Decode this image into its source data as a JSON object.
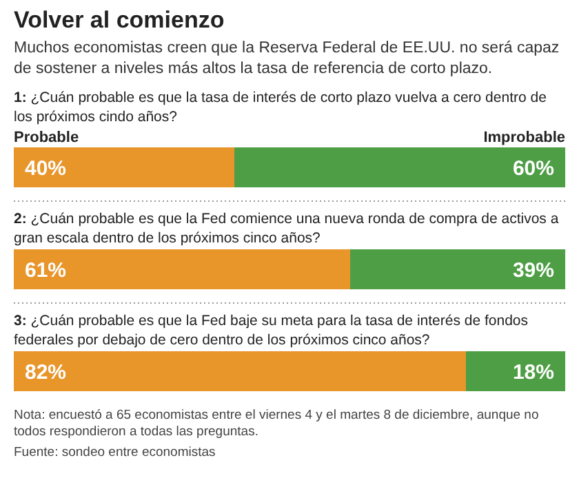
{
  "chart_data": {
    "type": "bar",
    "orientation": "horizontal",
    "stacked": true,
    "title": "Volver al comienzo",
    "subtitle": "Muchos economistas creen que la Reserva Federal de EE.UU. no será capaz de sostener a niveles más altos la tasa de referencia de corto plazo.",
    "categories": [
      "1: ¿Cuán probable es que la tasa de interés de corto plazo vuelva a cero dentro de los próximos cindo años?",
      "2: ¿Cuán probable es que la Fed comience una nueva ronda de compra de activos a gran escala dentro de los próximos cinco años?",
      "3: ¿Cuán probable es que la Fed baje su meta para la tasa de interés de fondos federales por debajo de cero dentro de los próximos cinco años?"
    ],
    "series": [
      {
        "name": "Probable",
        "color": "#e8952a",
        "values": [
          40,
          61,
          82
        ],
        "value_labels": [
          "40%",
          "61%",
          "82%"
        ]
      },
      {
        "name": "Improbable",
        "color": "#4d9e45",
        "values": [
          60,
          39,
          18
        ],
        "value_labels": [
          "60%",
          "39%",
          "18%"
        ]
      }
    ],
    "legend": "top",
    "annotations": [
      "Nota: encuestó a 65 economistas entre el viernes 4 y el martes 8 de diciembre, aunque no todos respondieron a todas las preguntas.",
      "Fuente: sondeo entre economistas"
    ]
  }
}
